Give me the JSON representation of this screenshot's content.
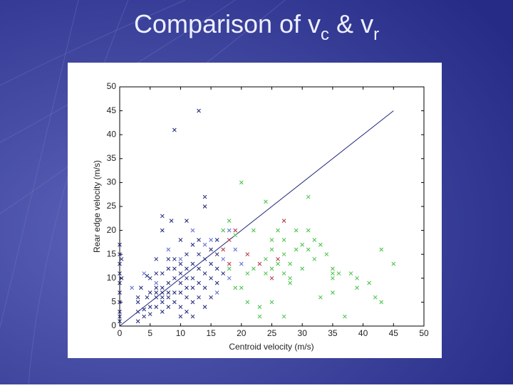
{
  "chart_data": {
    "type": "scatter",
    "title": [
      "Comparison of v",
      "c",
      " & v",
      "r"
    ],
    "xlabel": "Centroid velocity (m/s)",
    "ylabel": "Rear edge velocity (m/s)",
    "xlim": [
      0,
      50
    ],
    "ylim": [
      0,
      50
    ],
    "xticks": [
      0,
      5,
      10,
      15,
      20,
      25,
      30,
      35,
      40,
      45,
      50
    ],
    "yticks": [
      0,
      5,
      10,
      15,
      20,
      25,
      30,
      35,
      40,
      45,
      50
    ],
    "series": [
      {
        "color": "#1c2478",
        "x": [
          0,
          0,
          0,
          0,
          0,
          0,
          0,
          0,
          0,
          0,
          0.3,
          0.3,
          3,
          3,
          3,
          3,
          3.5,
          4,
          4,
          4.5,
          4.5,
          5,
          5,
          5,
          5,
          6,
          6,
          6,
          6,
          6,
          6,
          7,
          7,
          7,
          7,
          7,
          7,
          7,
          7,
          8,
          8,
          8,
          8,
          8,
          8,
          8.5,
          9,
          9,
          9,
          9,
          9,
          9,
          10,
          10,
          10,
          10,
          10,
          10,
          10,
          11,
          11,
          11,
          11,
          11,
          11,
          11,
          12,
          12,
          12,
          12,
          12,
          12,
          13,
          13,
          13,
          13,
          13,
          13,
          14,
          14,
          14,
          14,
          14,
          14,
          15,
          15,
          15,
          15,
          16,
          16,
          16,
          16,
          17
        ],
        "values": [
          1,
          2,
          3,
          5,
          7,
          9,
          11,
          13,
          15,
          17,
          10,
          14,
          1,
          3,
          5,
          6,
          8,
          2,
          3.5,
          6,
          10.5,
          2.5,
          4,
          7,
          10,
          4,
          6,
          7,
          8,
          14,
          11,
          3,
          5,
          6,
          7,
          8,
          20,
          23,
          11,
          4,
          6,
          7,
          9,
          12,
          14,
          22,
          5,
          7,
          10,
          12,
          14,
          41,
          2,
          4,
          7,
          9,
          11,
          13,
          18,
          3,
          6,
          8,
          10,
          12,
          15,
          22,
          2,
          5,
          8,
          10,
          13,
          17,
          45,
          6,
          9,
          12,
          15,
          18,
          4,
          8,
          11,
          14,
          25,
          27,
          6,
          10,
          13,
          16,
          9,
          12,
          15,
          18,
          11
        ]
      },
      {
        "color": "#5a6ad0",
        "x": [
          2,
          4,
          6,
          8,
          10,
          12,
          14,
          15,
          16,
          17,
          18,
          18,
          19,
          20
        ],
        "values": [
          8,
          11,
          9,
          16,
          14,
          20,
          17,
          18,
          7,
          14,
          20,
          10,
          16,
          13
        ]
      },
      {
        "color": "#44c244",
        "x": [
          17,
          18,
          18,
          19,
          19,
          20,
          20,
          21,
          21,
          22,
          22,
          23,
          23,
          24,
          24,
          24,
          25,
          25,
          25,
          25,
          26,
          26,
          27,
          27,
          27,
          27,
          28,
          28,
          28,
          29,
          29,
          30,
          30,
          31,
          31,
          31,
          32,
          32,
          33,
          33,
          34,
          35,
          35,
          35,
          35,
          36,
          37,
          38,
          39,
          39,
          41,
          42,
          43,
          43,
          45
        ],
        "values": [
          20,
          22,
          12,
          8,
          19,
          30,
          8,
          11,
          5,
          20,
          12,
          2,
          4,
          26,
          11,
          14,
          16,
          18,
          5,
          12,
          13,
          20,
          2,
          11,
          15,
          18,
          13,
          10,
          9,
          20,
          16,
          17,
          12,
          27,
          20,
          16,
          18,
          14,
          6,
          17,
          15,
          12,
          10,
          7,
          11,
          11,
          2,
          11,
          10,
          8,
          9,
          6,
          16,
          5,
          13
        ]
      },
      {
        "color": "#b03040",
        "x": [
          17,
          18,
          19,
          21,
          23,
          25,
          27,
          18,
          26
        ],
        "values": [
          16,
          18,
          20,
          15,
          13,
          10,
          22,
          13,
          14
        ]
      }
    ],
    "reference_line": {
      "color": "#1c2478",
      "x": [
        0,
        45
      ],
      "values": [
        0,
        45
      ]
    }
  }
}
